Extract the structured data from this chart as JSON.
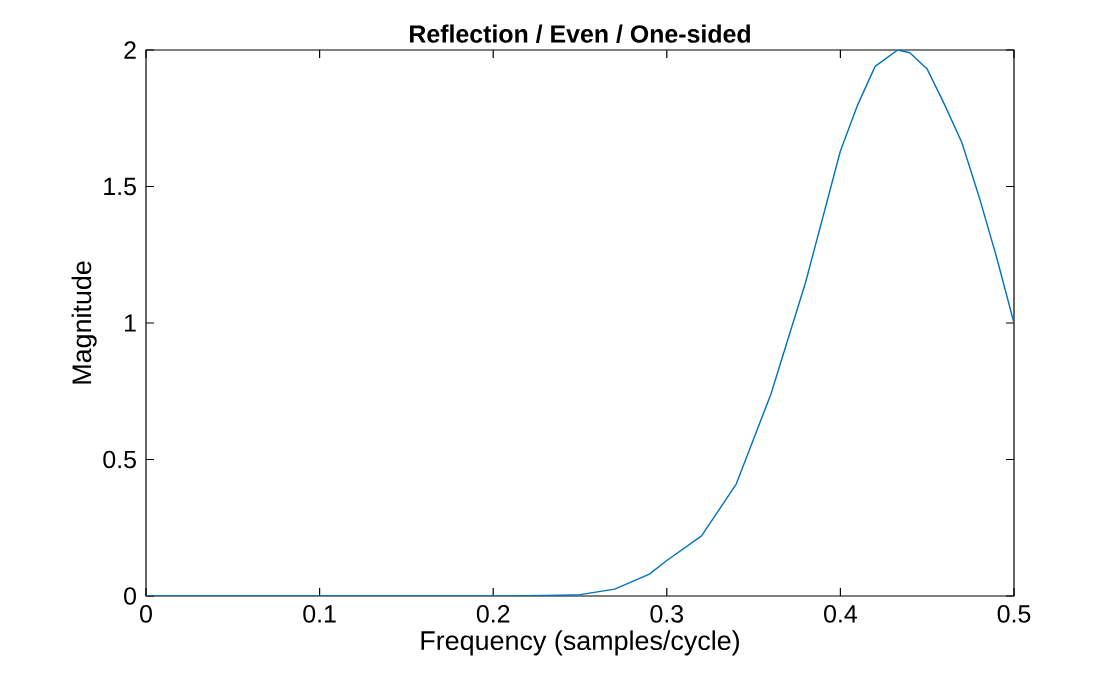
{
  "chart_data": {
    "type": "line",
    "title": "Reflection / Even / One-sided",
    "xlabel": "Frequency (samples/cycle)",
    "ylabel": "Magnitude",
    "xlim": [
      0,
      0.5
    ],
    "ylim": [
      0,
      2
    ],
    "xticks": [
      0,
      0.1,
      0.2,
      0.3,
      0.4,
      0.5
    ],
    "yticks": [
      0,
      0.5,
      1,
      1.5,
      2
    ],
    "grid": false,
    "marker": "none",
    "line_style": "solid",
    "series": [
      {
        "color": "#0072bd",
        "x": [
          0,
          0.05,
          0.1,
          0.15,
          0.2,
          0.22,
          0.24,
          0.25,
          0.27,
          0.29,
          0.3,
          0.32,
          0.34,
          0.36,
          0.38,
          0.4,
          0.41,
          0.42,
          0.433,
          0.44,
          0.45,
          0.46,
          0.47,
          0.48,
          0.49,
          0.5
        ],
        "values": [
          0,
          0,
          0,
          0,
          0,
          0.001,
          0.003,
          0.005,
          0.025,
          0.08,
          0.13,
          0.22,
          0.41,
          0.74,
          1.15,
          1.63,
          1.8,
          1.94,
          2,
          1.99,
          1.93,
          1.8,
          1.66,
          1.46,
          1.24,
          1
        ]
      }
    ]
  }
}
